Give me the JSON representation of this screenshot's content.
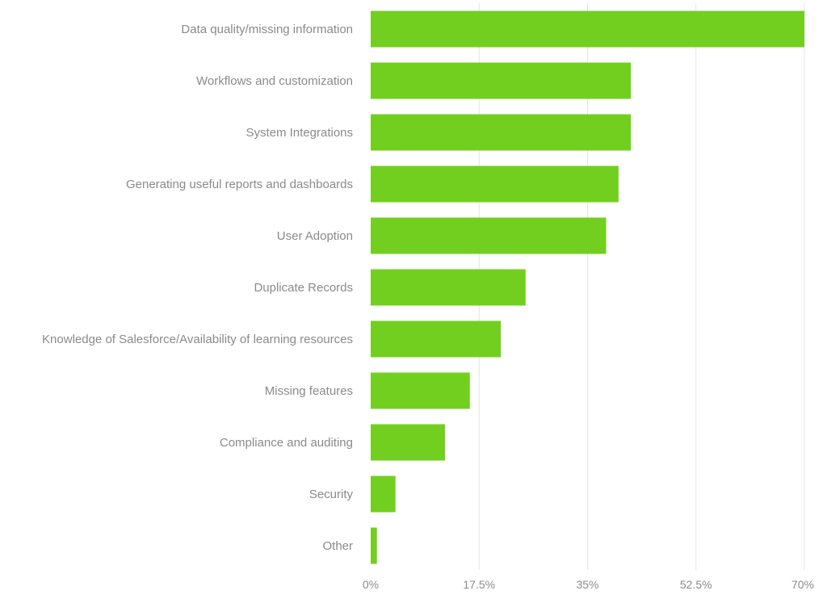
{
  "chart_data": {
    "type": "bar",
    "orientation": "horizontal",
    "title": "",
    "xlabel": "",
    "ylabel": "",
    "categories": [
      "Data quality/missing information",
      "Workflows and customization",
      "System Integrations",
      "Generating useful reports and dashboards",
      "User Adoption",
      "Duplicate Records",
      "Knowledge of Salesforce/Availability of learning resources",
      "Missing features",
      "Compliance and auditing",
      "Security",
      "Other"
    ],
    "values": [
      70,
      42,
      42,
      40,
      38,
      25,
      21,
      16,
      12,
      4,
      1
    ],
    "xlim": [
      0,
      70
    ],
    "ticks": [
      0,
      17.5,
      35,
      52.5,
      70
    ],
    "tick_labels": [
      "0%",
      "17.5%",
      "35%",
      "52.5%",
      "70%"
    ],
    "grid": true,
    "bar_color": "#72cf20"
  }
}
